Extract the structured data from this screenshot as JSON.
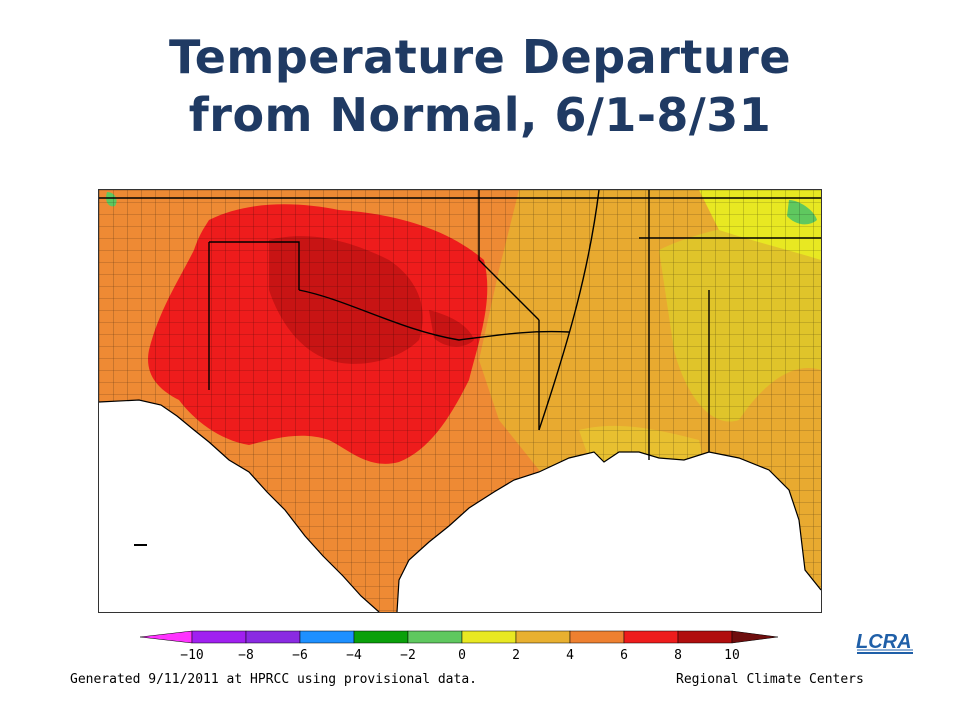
{
  "title": {
    "line1": "Temperature Departure",
    "line2": "from Normal, 6/1-8/31"
  },
  "map": {
    "type": "choropleth",
    "region": "South-Central and Southeastern United States",
    "classes": [
      {
        "range": "< -10",
        "color": "#ff33ff"
      },
      {
        "range": "-10 to -8",
        "color": "#b01fd6"
      },
      {
        "range": "-8 to -6",
        "color": "#8a2be2"
      },
      {
        "range": "-6 to -4",
        "color": "#1e90ff"
      },
      {
        "range": "-4 to -2",
        "color": "#0aa00a"
      },
      {
        "range": "-2 to 0",
        "color": "#5fc85f"
      },
      {
        "range": "0 to 2",
        "color": "#e8e822"
      },
      {
        "range": "2 to 4",
        "color": "#e8b030"
      },
      {
        "range": "4 to 6",
        "color": "#ee8030"
      },
      {
        "range": "6 to 8",
        "color": "#ee1c1c"
      },
      {
        "range": "8 to 10",
        "color": "#b00e0e"
      },
      {
        "range": "> 10",
        "color": "#6e0e0e"
      }
    ]
  },
  "legend": {
    "ticks": [
      "-10",
      "-8",
      "-6",
      "-4",
      "-2",
      "0",
      "2",
      "4",
      "6",
      "8",
      "10"
    ],
    "colors": [
      "#ff33ff",
      "#a020f0",
      "#8a2be2",
      "#1e90ff",
      "#0aa00a",
      "#5fc85f",
      "#e8e822",
      "#e8b030",
      "#ee8030",
      "#ee1c1c",
      "#b00e0e",
      "#6e0e0e"
    ]
  },
  "footer": {
    "left": "Generated 9/11/2011 at HPRCC using provisional data.",
    "right": "Regional Climate Centers"
  },
  "logo": {
    "text": "LCRA",
    "tagline": "ENERGY • WATER • COMMUNITY SERVICES",
    "color": "#1f5fa8"
  }
}
